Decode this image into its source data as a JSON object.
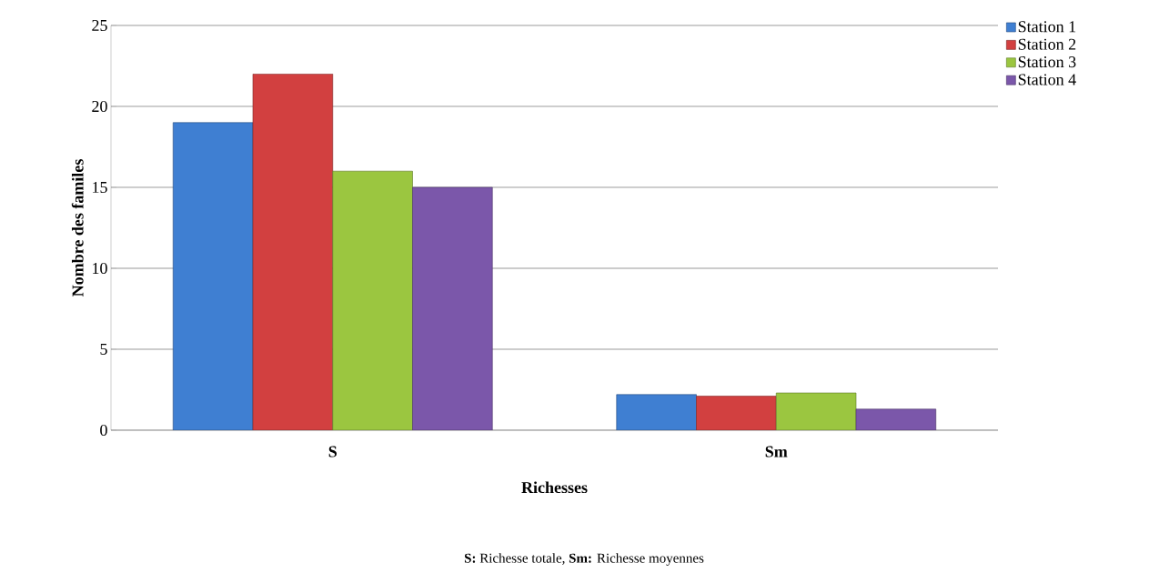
{
  "chart_data": {
    "type": "bar",
    "xlabel": "Richesses",
    "ylabel": "Nombre des familes",
    "categories": [
      "S",
      "Sm"
    ],
    "series": [
      {
        "name": "Station 1",
        "color": "#3f7fd2",
        "values": [
          19,
          2.2
        ]
      },
      {
        "name": "Station 2",
        "color": "#d24040",
        "values": [
          22,
          2.1
        ]
      },
      {
        "name": "Station 3",
        "color": "#9bc640",
        "values": [
          16,
          2.3
        ]
      },
      {
        "name": "Station 4",
        "color": "#7b57aa",
        "values": [
          15,
          1.3
        ]
      }
    ],
    "ylim": [
      0,
      25
    ],
    "yticks": [
      0,
      5,
      10,
      15,
      20,
      25
    ],
    "grid": "y",
    "legend": "right",
    "annotations": [
      "**S:** Richesse totale, **Sm:** Richesse moyennes"
    ]
  }
}
